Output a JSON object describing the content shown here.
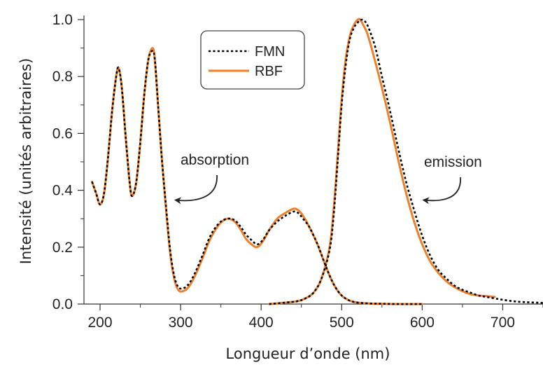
{
  "chart_data": {
    "type": "line",
    "title": "",
    "xlabel": "Longueur d’onde (nm)",
    "ylabel": "Intensité (unités arbitraires)",
    "xlim": [
      180,
      750
    ],
    "ylim": [
      0,
      1.0
    ],
    "x_ticks": [
      200,
      300,
      400,
      500,
      600,
      700
    ],
    "y_ticks": [
      0.0,
      0.2,
      0.4,
      0.6,
      0.8,
      1.0
    ],
    "x_tick_labels": [
      "200",
      "300",
      "400",
      "500",
      "600",
      "700"
    ],
    "y_tick_labels": [
      "0.0",
      "0.2",
      "0.4",
      "0.6",
      "0.8",
      "1.0"
    ],
    "grid": false,
    "legend": {
      "placement": "top-center",
      "entries": [
        {
          "name": "FMN",
          "style": "dotted",
          "color": "#000000"
        },
        {
          "name": "RBF",
          "style": "solid",
          "color": "#f07f2a"
        }
      ]
    },
    "annotations": [
      {
        "text": "absorption",
        "arrow_to": [
          292,
          0.37
        ]
      },
      {
        "text": "emission",
        "arrow_to": [
          600,
          0.37
        ]
      }
    ],
    "series": [
      {
        "name": "RBF",
        "group": "absorption",
        "color": "#f07f2a",
        "style": "solid",
        "x": [
          190,
          195,
          200,
          205,
          210,
          215,
          220,
          223,
          227,
          232,
          237,
          240,
          245,
          250,
          255,
          260,
          265,
          268,
          272,
          277,
          282,
          287,
          292,
          297,
          303,
          310,
          318,
          327,
          337,
          348,
          358,
          367,
          375,
          381,
          388,
          395,
          402,
          410,
          420,
          430,
          440,
          446,
          452,
          460,
          470,
          478,
          485,
          492,
          500,
          510,
          520,
          535,
          550,
          570,
          600
        ],
        "y": [
          0.43,
          0.39,
          0.35,
          0.39,
          0.52,
          0.68,
          0.8,
          0.83,
          0.76,
          0.58,
          0.42,
          0.38,
          0.43,
          0.57,
          0.74,
          0.86,
          0.9,
          0.86,
          0.7,
          0.5,
          0.33,
          0.18,
          0.09,
          0.05,
          0.045,
          0.06,
          0.1,
          0.16,
          0.23,
          0.28,
          0.3,
          0.29,
          0.26,
          0.23,
          0.21,
          0.2,
          0.22,
          0.26,
          0.3,
          0.32,
          0.335,
          0.33,
          0.31,
          0.27,
          0.21,
          0.15,
          0.1,
          0.06,
          0.03,
          0.012,
          0.005,
          0.002,
          0.001,
          0.0,
          0.0
        ]
      },
      {
        "name": "FMN",
        "group": "absorption",
        "color": "#000000",
        "style": "dotted",
        "x": [
          190,
          195,
          200,
          205,
          210,
          215,
          220,
          223,
          227,
          232,
          237,
          240,
          245,
          250,
          255,
          260,
          265,
          268,
          272,
          277,
          282,
          287,
          292,
          297,
          303,
          310,
          318,
          327,
          337,
          348,
          358,
          367,
          375,
          381,
          388,
          395,
          402,
          410,
          420,
          430,
          440,
          446,
          452,
          460,
          470,
          478,
          485,
          492,
          500,
          510,
          520,
          535,
          550,
          570,
          600
        ],
        "y": [
          0.43,
          0.39,
          0.35,
          0.39,
          0.52,
          0.68,
          0.8,
          0.83,
          0.76,
          0.58,
          0.42,
          0.38,
          0.43,
          0.57,
          0.74,
          0.86,
          0.89,
          0.86,
          0.7,
          0.5,
          0.34,
          0.19,
          0.1,
          0.06,
          0.055,
          0.07,
          0.11,
          0.17,
          0.24,
          0.285,
          0.3,
          0.295,
          0.27,
          0.245,
          0.225,
          0.21,
          0.225,
          0.26,
          0.29,
          0.31,
          0.325,
          0.32,
          0.3,
          0.27,
          0.21,
          0.15,
          0.1,
          0.06,
          0.03,
          0.012,
          0.005,
          0.002,
          0.001,
          0.0,
          0.0
        ]
      },
      {
        "name": "RBF",
        "group": "emission",
        "color": "#f07f2a",
        "style": "solid",
        "x": [
          410,
          430,
          445,
          455,
          465,
          475,
          485,
          490,
          495,
          500,
          505,
          510,
          515,
          520,
          523,
          527,
          532,
          540,
          550,
          560,
          570,
          580,
          590,
          600,
          610,
          620,
          630,
          640,
          650,
          660,
          670,
          680,
          690
        ],
        "y": [
          0.0,
          0.005,
          0.01,
          0.02,
          0.04,
          0.09,
          0.2,
          0.33,
          0.52,
          0.72,
          0.86,
          0.94,
          0.98,
          1.0,
          1.0,
          0.98,
          0.95,
          0.87,
          0.76,
          0.64,
          0.51,
          0.39,
          0.29,
          0.21,
          0.15,
          0.11,
          0.08,
          0.06,
          0.045,
          0.035,
          0.03,
          0.028,
          0.025
        ]
      },
      {
        "name": "FMN",
        "group": "emission",
        "color": "#000000",
        "style": "dotted",
        "x": [
          410,
          430,
          445,
          455,
          465,
          475,
          485,
          490,
          495,
          500,
          505,
          510,
          515,
          520,
          525,
          530,
          535,
          542,
          550,
          560,
          570,
          580,
          590,
          600,
          610,
          620,
          630,
          640,
          650,
          660,
          670,
          680,
          690,
          700,
          720,
          750
        ],
        "y": [
          0.0,
          0.005,
          0.01,
          0.02,
          0.04,
          0.09,
          0.19,
          0.31,
          0.5,
          0.7,
          0.84,
          0.93,
          0.97,
          0.99,
          1.0,
          0.99,
          0.96,
          0.9,
          0.8,
          0.68,
          0.55,
          0.43,
          0.33,
          0.24,
          0.17,
          0.12,
          0.09,
          0.065,
          0.05,
          0.04,
          0.03,
          0.025,
          0.02,
          0.015,
          0.008,
          0.004
        ]
      }
    ]
  }
}
